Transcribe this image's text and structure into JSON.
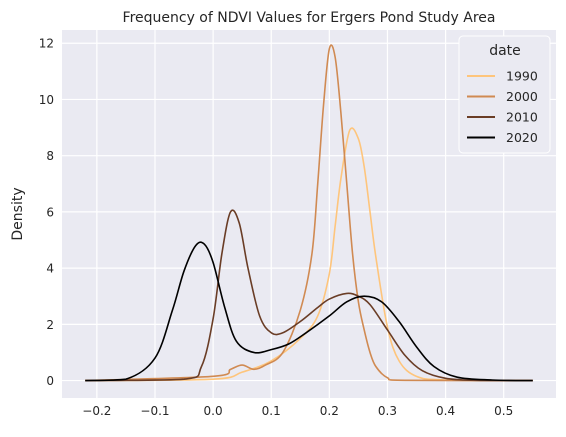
{
  "chart_data": {
    "type": "line",
    "title": "Frequency of NDVI Values for Ergers Pond Study Area",
    "xlabel": "",
    "ylabel": "Density",
    "xlim": [
      -0.26,
      0.59
    ],
    "ylim": [
      -0.62,
      12.47
    ],
    "xticks": [
      -0.2,
      -0.1,
      0.0,
      0.1,
      0.2,
      0.3,
      0.4,
      0.5
    ],
    "xtick_labels": [
      "−0.2",
      "−0.1",
      "0.0",
      "0.1",
      "0.2",
      "0.3",
      "0.4",
      "0.5"
    ],
    "yticks": [
      0,
      2,
      4,
      6,
      8,
      10,
      12
    ],
    "ytick_labels": [
      "0",
      "2",
      "4",
      "6",
      "8",
      "10",
      "12"
    ],
    "grid": true,
    "background": "#eaeaf2",
    "legend": {
      "title": "date",
      "placement": "top-right"
    },
    "series": [
      {
        "name": "1990",
        "color": "#fec57c",
        "x": [
          -0.22,
          0.0,
          0.05,
          0.1,
          0.15,
          0.18,
          0.2,
          0.21,
          0.22,
          0.235,
          0.25,
          0.26,
          0.27,
          0.28,
          0.3,
          0.32,
          0.35,
          0.4,
          0.55
        ],
        "y": [
          0,
          0.05,
          0.3,
          0.7,
          1.5,
          2.3,
          3.8,
          5.5,
          7.2,
          8.9,
          8.6,
          7.6,
          6.0,
          4.4,
          1.9,
          0.7,
          0.15,
          0.02,
          0
        ]
      },
      {
        "name": "2000",
        "color": "#d08a52",
        "x": [
          -0.22,
          0.0,
          0.03,
          0.05,
          0.07,
          0.09,
          0.12,
          0.15,
          0.17,
          0.18,
          0.19,
          0.2,
          0.21,
          0.22,
          0.23,
          0.24,
          0.25,
          0.26,
          0.27,
          0.28,
          0.3,
          0.33,
          0.55
        ],
        "y": [
          0,
          0.15,
          0.4,
          0.55,
          0.4,
          0.55,
          1.0,
          2.5,
          4.5,
          7.0,
          9.8,
          11.8,
          11.5,
          9.5,
          7.0,
          4.5,
          2.8,
          1.8,
          1.0,
          0.5,
          0.1,
          0.01,
          0
        ]
      },
      {
        "name": "2010",
        "color": "#6a3d26",
        "x": [
          -0.22,
          -0.05,
          -0.02,
          0.0,
          0.015,
          0.03,
          0.045,
          0.06,
          0.08,
          0.1,
          0.12,
          0.15,
          0.18,
          0.2,
          0.23,
          0.25,
          0.27,
          0.3,
          0.33,
          0.36,
          0.4,
          0.45,
          0.55
        ],
        "y": [
          0,
          0.05,
          0.5,
          2.2,
          4.5,
          6.0,
          5.6,
          4.0,
          2.3,
          1.7,
          1.7,
          2.1,
          2.6,
          2.9,
          3.1,
          3.0,
          2.7,
          1.8,
          0.9,
          0.35,
          0.08,
          0.01,
          0
        ]
      },
      {
        "name": "2020",
        "color": "#000000",
        "x": [
          -0.22,
          -0.15,
          -0.1,
          -0.07,
          -0.05,
          -0.03,
          -0.015,
          0.0,
          0.02,
          0.04,
          0.07,
          0.1,
          0.13,
          0.16,
          0.2,
          0.23,
          0.26,
          0.29,
          0.32,
          0.35,
          0.38,
          0.42,
          0.48,
          0.55
        ],
        "y": [
          0,
          0.05,
          0.8,
          2.5,
          3.9,
          4.8,
          4.85,
          4.2,
          2.6,
          1.4,
          1.0,
          1.1,
          1.3,
          1.7,
          2.3,
          2.8,
          3.0,
          2.8,
          2.1,
          1.2,
          0.5,
          0.12,
          0.02,
          0
        ]
      }
    ]
  }
}
